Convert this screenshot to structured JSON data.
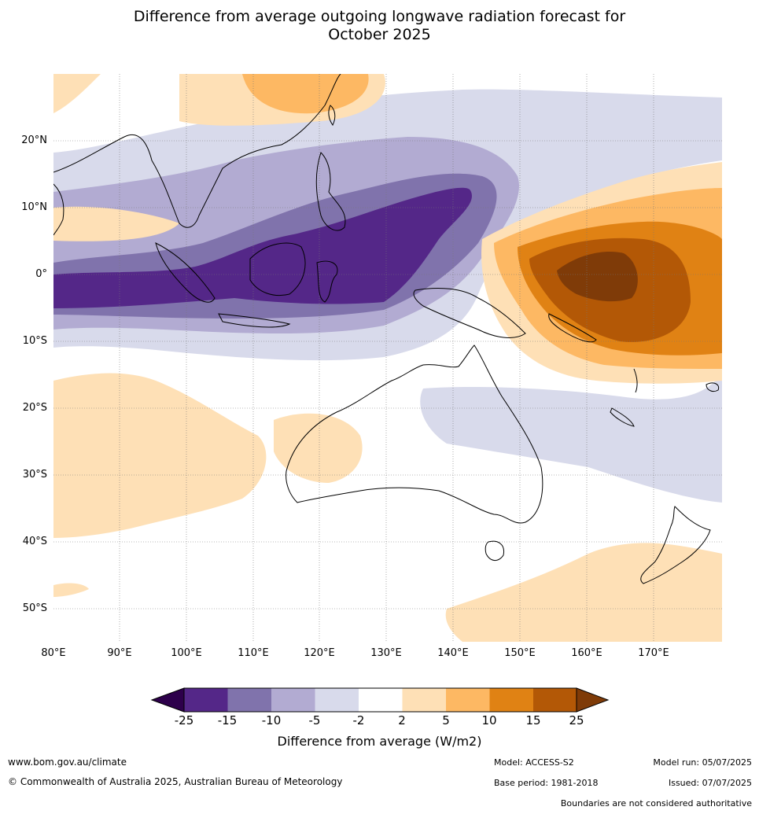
{
  "title_line1": "Difference from average outgoing longwave radiation forecast for",
  "title_line2": "October 2025",
  "lat_labels": [
    "20°N",
    "10°N",
    "0°",
    "10°S",
    "20°S",
    "30°S",
    "40°S",
    "50°S"
  ],
  "lon_labels": [
    "80°E",
    "90°E",
    "100°E",
    "110°E",
    "120°E",
    "130°E",
    "140°E",
    "150°E",
    "160°E",
    "170°E"
  ],
  "colorbar": {
    "tick_labels": [
      "-25",
      "-15",
      "-10",
      "-5",
      "-2",
      "2",
      "5",
      "10",
      "15",
      "25"
    ],
    "colors": [
      "#2d004b",
      "#542788",
      "#8073ac",
      "#b2abd2",
      "#d8daeb",
      "#ffffff",
      "#fee0b6",
      "#fdb863",
      "#e08214",
      "#b35806",
      "#7f3b08"
    ],
    "title": "Difference from average (W/m2)"
  },
  "footer": {
    "website": "www.bom.gov.au/climate",
    "copyright": "© Commonwealth of Australia 2025, Australian Bureau of Meteorology",
    "model": "Model: ACCESS-S2",
    "base_period": "Base period: 1981-2018",
    "model_run": "Model run: 05/07/2025",
    "issued": "Issued: 07/07/2025",
    "disclaimer": "Boundaries are not considered authoritative"
  }
}
